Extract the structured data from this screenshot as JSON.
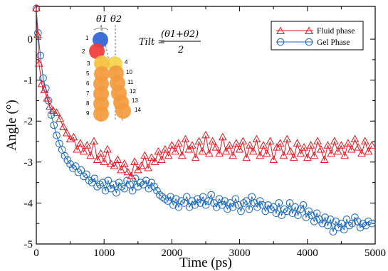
{
  "chart_data": {
    "type": "line",
    "xlabel": "Time (ps)",
    "ylabel": "Angle (°)",
    "xlim": [
      0,
      5000
    ],
    "ylim": [
      -5,
      0.8
    ],
    "xticks": [
      0,
      1000,
      2000,
      3000,
      4000,
      5000
    ],
    "yticks": [
      0,
      -1,
      -2,
      -3,
      -4,
      -5
    ],
    "grid": false,
    "legend_position": "top-right",
    "series": [
      {
        "name": "Fluid phase",
        "color": "#e8141b",
        "marker": "triangle",
        "x": [
          0,
          20,
          40,
          80,
          120,
          160,
          200,
          250,
          300,
          350,
          400,
          450,
          500,
          550,
          600,
          650,
          700,
          750,
          800,
          850,
          900,
          950,
          1000,
          1050,
          1100,
          1150,
          1200,
          1250,
          1300,
          1350,
          1400,
          1450,
          1500,
          1550,
          1600,
          1650,
          1700,
          1750,
          1800,
          1850,
          1900,
          1950,
          2000,
          2050,
          2100,
          2150,
          2200,
          2250,
          2300,
          2350,
          2400,
          2450,
          2500,
          2550,
          2600,
          2650,
          2700,
          2750,
          2800,
          2850,
          2900,
          2950,
          3000,
          3050,
          3100,
          3150,
          3200,
          3250,
          3300,
          3350,
          3400,
          3450,
          3500,
          3550,
          3600,
          3650,
          3700,
          3750,
          3800,
          3850,
          3900,
          3950,
          4000,
          4050,
          4100,
          4150,
          4200,
          4250,
          4300,
          4350,
          4400,
          4450,
          4500,
          4550,
          4600,
          4650,
          4700,
          4750,
          4800,
          4850,
          4900,
          4950
        ],
        "y": [
          0.75,
          0.1,
          -0.6,
          -1.1,
          -1.25,
          -1.45,
          -1.65,
          -1.75,
          -1.8,
          -1.95,
          -2.15,
          -2.3,
          -2.45,
          -2.4,
          -2.7,
          -2.55,
          -2.75,
          -2.6,
          -2.85,
          -2.5,
          -2.95,
          -2.8,
          -3.0,
          -2.7,
          -3.05,
          -3.1,
          -2.95,
          -3.2,
          -3.05,
          -3.25,
          -3.35,
          -3.0,
          -3.2,
          -3.1,
          -2.85,
          -3.15,
          -2.9,
          -3.0,
          -2.75,
          -2.95,
          -2.7,
          -2.85,
          -2.6,
          -2.75,
          -2.55,
          -2.85,
          -2.45,
          -2.7,
          -2.6,
          -2.9,
          -2.5,
          -2.75,
          -2.35,
          -2.8,
          -2.5,
          -2.65,
          -2.8,
          -2.4,
          -2.75,
          -2.6,
          -2.85,
          -2.55,
          -2.7,
          -2.5,
          -2.9,
          -2.6,
          -2.75,
          -2.45,
          -2.85,
          -2.6,
          -2.8,
          -2.5,
          -2.95,
          -2.65,
          -2.55,
          -2.85,
          -2.45,
          -2.75,
          -2.9,
          -2.55,
          -2.8,
          -2.65,
          -2.9,
          -2.6,
          -2.85,
          -2.5,
          -2.7,
          -2.95,
          -2.6,
          -2.8,
          -2.5,
          -2.75,
          -2.6,
          -2.85,
          -2.55,
          -2.7,
          -2.45,
          -2.65,
          -2.8,
          -2.5,
          -2.75,
          -2.6
        ]
      },
      {
        "name": "Gel Phase",
        "color": "#1565c0",
        "marker": "circle",
        "x": [
          0,
          25,
          60,
          100,
          140,
          180,
          220,
          260,
          300,
          340,
          380,
          420,
          460,
          500,
          540,
          580,
          620,
          660,
          700,
          740,
          780,
          820,
          860,
          900,
          940,
          980,
          1020,
          1060,
          1100,
          1140,
          1180,
          1220,
          1260,
          1300,
          1340,
          1380,
          1420,
          1460,
          1500,
          1540,
          1580,
          1620,
          1660,
          1700,
          1740,
          1780,
          1820,
          1860,
          1900,
          1940,
          1980,
          2020,
          2060,
          2100,
          2140,
          2180,
          2220,
          2260,
          2300,
          2340,
          2380,
          2420,
          2460,
          2500,
          2540,
          2580,
          2620,
          2660,
          2700,
          2740,
          2780,
          2820,
          2860,
          2900,
          2940,
          2980,
          3020,
          3060,
          3100,
          3140,
          3180,
          3220,
          3260,
          3300,
          3340,
          3380,
          3420,
          3460,
          3500,
          3540,
          3580,
          3620,
          3660,
          3700,
          3740,
          3780,
          3820,
          3860,
          3900,
          3940,
          3980,
          4020,
          4060,
          4100,
          4140,
          4180,
          4220,
          4260,
          4300,
          4340,
          4380,
          4420,
          4460,
          4500,
          4540,
          4580,
          4620,
          4660,
          4700,
          4740,
          4780,
          4820,
          4860,
          4900,
          4950
        ],
        "y": [
          0.75,
          0.15,
          -0.4,
          -0.95,
          -1.2,
          -1.5,
          -1.85,
          -2.1,
          -2.35,
          -2.55,
          -2.7,
          -2.85,
          -2.95,
          -3.05,
          -3.15,
          -3.1,
          -3.25,
          -3.2,
          -3.35,
          -3.3,
          -3.45,
          -3.5,
          -3.4,
          -3.6,
          -3.55,
          -3.5,
          -3.7,
          -3.45,
          -3.65,
          -3.55,
          -3.75,
          -3.5,
          -3.6,
          -3.65,
          -3.45,
          -3.55,
          -3.7,
          -3.4,
          -3.6,
          -3.5,
          -3.55,
          -3.45,
          -3.65,
          -3.5,
          -3.6,
          -3.7,
          -3.8,
          -3.85,
          -3.9,
          -3.95,
          -3.85,
          -4.05,
          -3.9,
          -4.1,
          -3.95,
          -4.0,
          -3.85,
          -4.1,
          -3.95,
          -4.05,
          -3.9,
          -4.0,
          -3.85,
          -4.05,
          -3.95,
          -3.8,
          -4.0,
          -4.1,
          -3.9,
          -4.05,
          -3.95,
          -4.15,
          -4.0,
          -4.1,
          -3.9,
          -4.05,
          -4.2,
          -4.0,
          -3.95,
          -4.15,
          -3.85,
          -4.0,
          -4.1,
          -3.95,
          -4.05,
          -4.2,
          -4.05,
          -4.15,
          -4.1,
          -4.25,
          -4.0,
          -4.3,
          -4.15,
          -4.2,
          -4.0,
          -4.25,
          -4.1,
          -4.3,
          -4.15,
          -4.05,
          -4.35,
          -4.2,
          -4.3,
          -4.45,
          -4.25,
          -4.4,
          -4.5,
          -4.35,
          -4.55,
          -4.4,
          -4.7,
          -4.45,
          -4.6,
          -4.5,
          -4.65,
          -4.4,
          -4.55,
          -4.5,
          -4.35,
          -4.45,
          -4.6,
          -4.5,
          -4.55,
          -4.45,
          -4.5
        ]
      }
    ]
  },
  "inset": {
    "theta1": "θ1",
    "theta2": "θ2",
    "formula_lhs": "Tilt =",
    "formula_num": "(θ1+θ2)",
    "formula_den": "2",
    "bead_labels": [
      "1",
      "2",
      "3",
      "4",
      "5",
      "6",
      "7",
      "8",
      "9",
      "10",
      "11",
      "12",
      "13",
      "14"
    ],
    "colors": {
      "bead1": "#2f64d6",
      "bead2": "#f03a3a",
      "bead3": "#f5c13b",
      "bead4": "#f7d44a",
      "tail": "#f39a3d"
    }
  }
}
